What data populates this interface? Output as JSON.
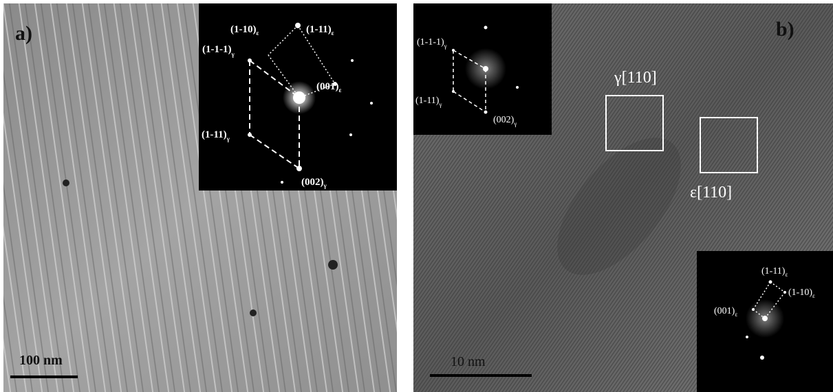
{
  "panel_a": {
    "label": "a)",
    "scale_bar": "100 nm",
    "inset_spots": [
      {
        "index": "(1-10)",
        "phase": "ε"
      },
      {
        "index": "(1-11)",
        "phase": "ε"
      },
      {
        "index": "(1-1-1)",
        "phase": "γ"
      },
      {
        "index": "(001)",
        "phase": "ε"
      },
      {
        "index": "(1-11)",
        "phase": "γ"
      },
      {
        "index": "(002)",
        "phase": "γ"
      }
    ]
  },
  "panel_b": {
    "label": "b)",
    "scale_bar": "10 nm",
    "regions": [
      "γ[110]",
      "ε[110]"
    ],
    "inset_gamma": [
      {
        "index": "(1-1-1)",
        "phase": "γ"
      },
      {
        "index": "(1-11)",
        "phase": "γ"
      },
      {
        "index": "(002)",
        "phase": "γ"
      }
    ],
    "inset_epsilon": [
      {
        "index": "(1-11)",
        "phase": "ε"
      },
      {
        "index": "(1-10)",
        "phase": "ε"
      },
      {
        "index": "(001)",
        "phase": "ε"
      }
    ]
  }
}
